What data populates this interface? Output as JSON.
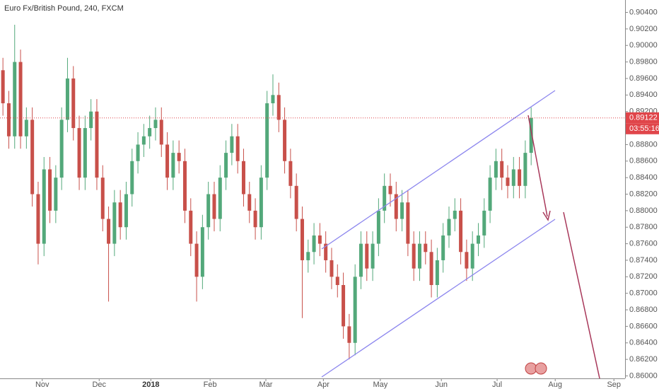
{
  "chart_data": {
    "type": "candlestick",
    "title": "Euro Fx/British Pound, 240, FXCM",
    "countdown": "03:55:16",
    "up_color": "#53a87a",
    "down_color": "#c8504a",
    "price_line_color": "#e0454a",
    "open": [
      0.897,
      0.893,
      0.889,
      0.898,
      0.889,
      0.891,
      0.882,
      0.876,
      0.885,
      0.88,
      0.884,
      0.891,
      0.896,
      0.89,
      0.884,
      0.89,
      0.892,
      0.884,
      0.879,
      0.876,
      0.881,
      0.878,
      0.882,
      0.886,
      0.888,
      0.889,
      0.89,
      0.891,
      0.888,
      0.884,
      0.887,
      0.886,
      0.88,
      0.876,
      0.872,
      0.878,
      0.882,
      0.879,
      0.884,
      0.887,
      0.889,
      0.886,
      0.882,
      0.88,
      0.878,
      0.884,
      0.893,
      0.894,
      0.891,
      0.886,
      0.883,
      0.879,
      0.874,
      0.875,
      0.877,
      0.876,
      0.874,
      0.872,
      0.871,
      0.866,
      0.864,
      0.872,
      0.876,
      0.873,
      0.876,
      0.88,
      0.883,
      0.882,
      0.879,
      0.881,
      0.876,
      0.873,
      0.876,
      0.875,
      0.871,
      0.874,
      0.877,
      0.879,
      0.88,
      0.875,
      0.873,
      0.876,
      0.877,
      0.88,
      0.884,
      0.886,
      0.884,
      0.883,
      0.885,
      0.883,
      0.887
    ],
    "high": [
      0.8985,
      0.8945,
      0.9025,
      0.8995,
      0.8925,
      0.8925,
      0.8835,
      0.8865,
      0.8865,
      0.8855,
      0.8925,
      0.8985,
      0.8975,
      0.8915,
      0.8915,
      0.8935,
      0.8935,
      0.8855,
      0.8805,
      0.8825,
      0.8825,
      0.8835,
      0.8875,
      0.8895,
      0.8905,
      0.8915,
      0.8925,
      0.8925,
      0.8895,
      0.8885,
      0.8885,
      0.8875,
      0.8815,
      0.8775,
      0.8795,
      0.8835,
      0.8835,
      0.8855,
      0.8885,
      0.8905,
      0.8905,
      0.8875,
      0.8835,
      0.8815,
      0.8855,
      0.8945,
      0.8965,
      0.8955,
      0.8925,
      0.8875,
      0.8845,
      0.8805,
      0.8765,
      0.8785,
      0.8785,
      0.8775,
      0.8755,
      0.8735,
      0.8725,
      0.8675,
      0.8735,
      0.8775,
      0.8775,
      0.8775,
      0.8815,
      0.8845,
      0.8845,
      0.8835,
      0.8825,
      0.8825,
      0.8775,
      0.8775,
      0.8775,
      0.8765,
      0.8755,
      0.8785,
      0.8805,
      0.8815,
      0.8815,
      0.8765,
      0.8775,
      0.8785,
      0.8815,
      0.8855,
      0.8875,
      0.8875,
      0.8855,
      0.8865,
      0.8865,
      0.8885,
      0.8925
    ],
    "low": [
      0.8915,
      0.8875,
      0.8875,
      0.8875,
      0.8875,
      0.8805,
      0.8735,
      0.8745,
      0.8785,
      0.8785,
      0.8825,
      0.8895,
      0.8885,
      0.8825,
      0.8825,
      0.8885,
      0.8825,
      0.8775,
      0.869,
      0.8745,
      0.8765,
      0.8765,
      0.8805,
      0.8845,
      0.8865,
      0.8875,
      0.8885,
      0.8865,
      0.8825,
      0.8825,
      0.8845,
      0.8785,
      0.8745,
      0.869,
      0.8705,
      0.8765,
      0.8775,
      0.8775,
      0.8825,
      0.8855,
      0.8845,
      0.8805,
      0.8785,
      0.8765,
      0.8765,
      0.8825,
      0.8915,
      0.8895,
      0.8845,
      0.8815,
      0.8775,
      0.867,
      0.8725,
      0.8735,
      0.8745,
      0.8725,
      0.8705,
      0.8695,
      0.8645,
      0.862,
      0.8625,
      0.8705,
      0.8715,
      0.8715,
      0.8745,
      0.8785,
      0.8805,
      0.8775,
      0.8775,
      0.8745,
      0.8715,
      0.8715,
      0.8735,
      0.8695,
      0.8695,
      0.8725,
      0.8755,
      0.8775,
      0.8735,
      0.8715,
      0.8715,
      0.8745,
      0.8755,
      0.8785,
      0.8825,
      0.8825,
      0.8815,
      0.8815,
      0.8815,
      0.8815,
      0.8855
    ],
    "close": [
      0.893,
      0.889,
      0.898,
      0.889,
      0.891,
      0.882,
      0.876,
      0.885,
      0.88,
      0.884,
      0.891,
      0.896,
      0.89,
      0.884,
      0.89,
      0.892,
      0.884,
      0.879,
      0.876,
      0.881,
      0.878,
      0.882,
      0.886,
      0.888,
      0.889,
      0.89,
      0.891,
      0.888,
      0.884,
      0.887,
      0.886,
      0.88,
      0.876,
      0.872,
      0.878,
      0.882,
      0.879,
      0.884,
      0.887,
      0.889,
      0.886,
      0.882,
      0.88,
      0.878,
      0.884,
      0.893,
      0.894,
      0.891,
      0.886,
      0.883,
      0.879,
      0.874,
      0.875,
      0.877,
      0.876,
      0.874,
      0.872,
      0.871,
      0.866,
      0.864,
      0.872,
      0.876,
      0.873,
      0.876,
      0.88,
      0.883,
      0.882,
      0.879,
      0.881,
      0.876,
      0.873,
      0.876,
      0.875,
      0.871,
      0.874,
      0.877,
      0.879,
      0.88,
      0.875,
      0.873,
      0.876,
      0.877,
      0.88,
      0.884,
      0.886,
      0.884,
      0.883,
      0.885,
      0.883,
      0.887,
      0.89122
    ],
    "xlim": [
      0,
      106.5
    ],
    "xticks": [
      {
        "value": 7.2,
        "label": "Nov"
      },
      {
        "value": 16.9,
        "label": "Dec"
      },
      {
        "value": 25.7,
        "label": "2018"
      },
      {
        "value": 35.8,
        "label": "Feb"
      },
      {
        "value": 45.3,
        "label": "Mar"
      },
      {
        "value": 55.1,
        "label": "Apr"
      },
      {
        "value": 64.8,
        "label": "May"
      },
      {
        "value": 75.2,
        "label": "Jun"
      },
      {
        "value": 84.7,
        "label": "Jul"
      },
      {
        "value": 94.6,
        "label": "Aug"
      },
      {
        "value": 104.6,
        "label": "Sep"
      }
    ],
    "ylim": [
      0.8597,
      0.9055
    ],
    "yticks": [
      {
        "value": 0.86,
        "label": "0.86000"
      },
      {
        "value": 0.862,
        "label": "0.86200"
      },
      {
        "value": 0.864,
        "label": "0.86400"
      },
      {
        "value": 0.866,
        "label": "0.86600"
      },
      {
        "value": 0.868,
        "label": "0.86800"
      },
      {
        "value": 0.87,
        "label": "0.87000"
      },
      {
        "value": 0.872,
        "label": "0.87200"
      },
      {
        "value": 0.874,
        "label": "0.87400"
      },
      {
        "value": 0.876,
        "label": "0.87600"
      },
      {
        "value": 0.878,
        "label": "0.87800"
      },
      {
        "value": 0.88,
        "label": "0.88000"
      },
      {
        "value": 0.882,
        "label": "0.88200"
      },
      {
        "value": 0.884,
        "label": "0.88400"
      },
      {
        "value": 0.886,
        "label": "0.88600"
      },
      {
        "value": 0.888,
        "label": "0.88800"
      },
      {
        "value": 0.89,
        "label": "0.89000"
      },
      {
        "value": 0.892,
        "label": "0.89200"
      },
      {
        "value": 0.894,
        "label": "0.89400"
      },
      {
        "value": 0.896,
        "label": "0.89600"
      },
      {
        "value": 0.898,
        "label": "0.89800"
      },
      {
        "value": 0.9,
        "label": "0.90000"
      },
      {
        "value": 0.902,
        "label": "0.90200"
      },
      {
        "value": 0.904,
        "label": "0.90400"
      }
    ],
    "grid": false
  }
}
